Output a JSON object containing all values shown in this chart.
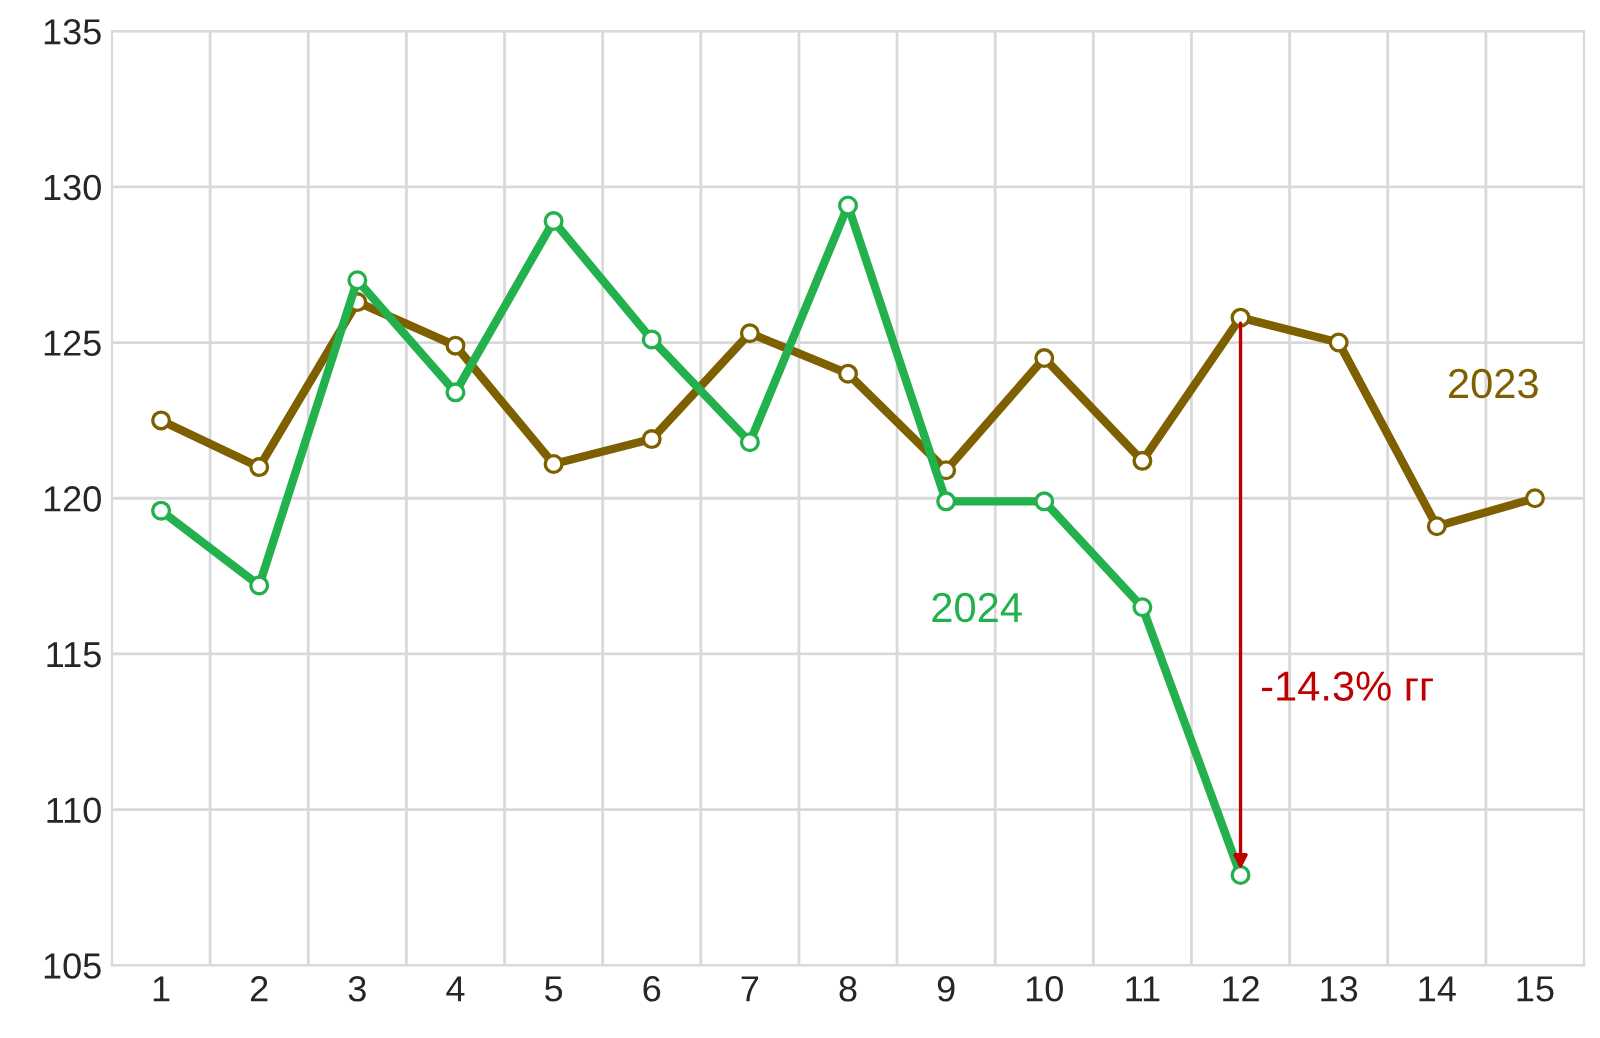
{
  "chart_data": {
    "type": "line",
    "categories": [
      "1",
      "2",
      "3",
      "4",
      "5",
      "6",
      "7",
      "8",
      "9",
      "10",
      "11",
      "12",
      "13",
      "14",
      "15"
    ],
    "series": [
      {
        "name": "2023",
        "color": "#7f6000",
        "values": [
          122.5,
          121.0,
          126.3,
          124.9,
          121.1,
          121.9,
          125.3,
          124.0,
          120.9,
          124.5,
          121.2,
          125.8,
          125.0,
          119.1,
          120.0
        ]
      },
      {
        "name": "2024",
        "color": "#22b14c",
        "values": [
          119.6,
          117.2,
          127.0,
          123.4,
          128.9,
          125.1,
          121.8,
          129.4,
          119.9,
          119.9,
          116.5,
          107.9,
          null,
          null,
          null
        ]
      }
    ],
    "ylim": [
      105,
      135
    ],
    "yticks": [
      105,
      110,
      115,
      120,
      125,
      130,
      135
    ],
    "grid": true,
    "legend": false,
    "marker": "circle",
    "line_style": "solid",
    "annotations": [
      "-14.3% гг"
    ]
  }
}
